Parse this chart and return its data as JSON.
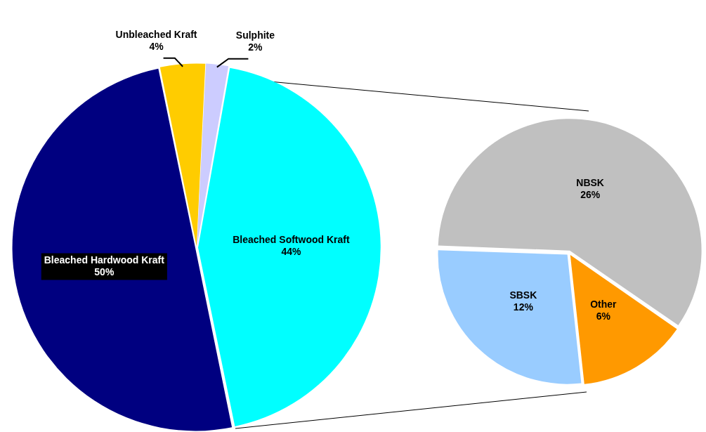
{
  "chart_data": [
    {
      "type": "pie",
      "categories": [
        "Bleached Softwood Kraft",
        "Bleached Hardwood Kraft",
        "Unbleached Kraft",
        "Sulphite"
      ],
      "values": [
        44,
        50,
        4,
        2
      ],
      "colors": [
        "#00ffff",
        "#000080",
        "#ffcc00",
        "#ccccff"
      ],
      "value_labels": [
        "44%",
        "50%",
        "4%",
        "2%"
      ]
    },
    {
      "type": "pie",
      "categories": [
        "NBSK",
        "Other",
        "SBSK"
      ],
      "values": [
        26,
        6,
        12
      ],
      "colors": [
        "#c0c0c0",
        "#ff9900",
        "#99ccff"
      ],
      "value_labels": [
        "26%",
        "6%",
        "12%"
      ]
    }
  ]
}
